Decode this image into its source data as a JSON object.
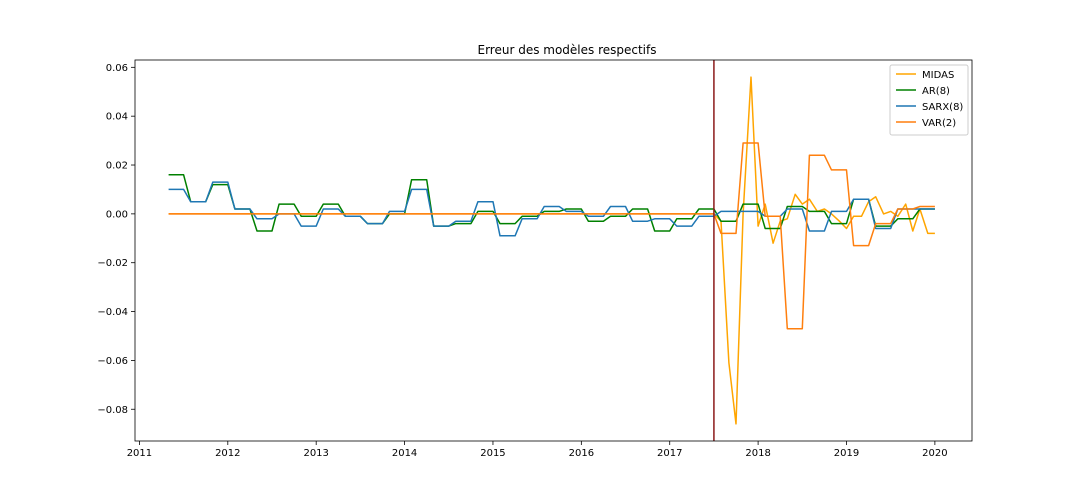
{
  "chart_data": {
    "type": "line",
    "title": "Erreur des modèles respectifs",
    "xlabel": "",
    "ylabel": "",
    "xlim": [
      2010.95,
      2020.42
    ],
    "ylim": [
      -0.093,
      0.063
    ],
    "xticks": [
      2011,
      2012,
      2013,
      2014,
      2015,
      2016,
      2017,
      2018,
      2019,
      2020
    ],
    "xtick_labels": [
      "2011",
      "2012",
      "2013",
      "2014",
      "2015",
      "2016",
      "2017",
      "2018",
      "2019",
      "2020"
    ],
    "yticks": [
      0.06,
      0.04,
      0.02,
      0.0,
      -0.02,
      -0.04,
      -0.06,
      -0.08
    ],
    "ytick_labels": [
      "0.06",
      "0.04",
      "0.02",
      "0.00",
      "−0.02",
      "−0.04",
      "−0.06",
      "−0.08"
    ],
    "grid": false,
    "legend_position": "top-right",
    "vline": {
      "x": 2017.5,
      "color": "#8b1a1a"
    },
    "series": [
      {
        "name": "MIDAS",
        "color": "#ffa500",
        "x": [
          2011.33,
          2011.5,
          2011.67,
          2011.83,
          2012.0,
          2012.17,
          2012.33,
          2012.5,
          2012.67,
          2012.83,
          2013.0,
          2013.17,
          2013.33,
          2013.5,
          2013.67,
          2013.83,
          2014.0,
          2014.17,
          2014.33,
          2014.5,
          2014.67,
          2014.83,
          2015.0,
          2015.17,
          2015.33,
          2015.5,
          2015.67,
          2015.83,
          2016.0,
          2016.17,
          2016.33,
          2016.5,
          2016.67,
          2016.83,
          2017.0,
          2017.17,
          2017.33,
          2017.5,
          2017.58,
          2017.67,
          2017.75,
          2017.83,
          2017.92,
          2018.0,
          2018.08,
          2018.17,
          2018.25,
          2018.33,
          2018.42,
          2018.5,
          2018.58,
          2018.67,
          2018.75,
          2018.83,
          2018.92,
          2019.0,
          2019.08,
          2019.17,
          2019.25,
          2019.33,
          2019.42,
          2019.5,
          2019.58,
          2019.67,
          2019.75,
          2019.83,
          2019.92,
          2020.0
        ],
        "y": [
          0.0,
          0.0,
          0.0,
          0.0,
          0.0,
          0.0,
          0.0,
          0.0,
          0.0,
          0.0,
          0.0,
          0.0,
          0.0,
          0.0,
          0.0,
          0.0,
          0.0,
          0.0,
          0.0,
          0.0,
          0.0,
          0.0,
          0.0,
          0.0,
          0.0,
          0.0,
          0.0,
          0.0,
          0.0,
          0.0,
          0.0,
          0.0,
          0.0,
          0.0,
          0.0,
          0.0,
          0.0,
          0.0,
          -0.003,
          -0.061,
          -0.086,
          0.0,
          0.056,
          -0.005,
          0.004,
          -0.012,
          -0.003,
          -0.002,
          0.008,
          0.004,
          0.006,
          0.001,
          0.002,
          0.0,
          -0.003,
          -0.006,
          -0.001,
          -0.001,
          0.005,
          0.007,
          0.0,
          0.001,
          -0.001,
          0.004,
          -0.007,
          0.002,
          -0.008,
          -0.008
        ]
      },
      {
        "name": "AR(8)",
        "color": "#008000",
        "x": [
          2011.33,
          2011.5,
          2011.58,
          2011.75,
          2011.83,
          2012.0,
          2012.08,
          2012.25,
          2012.33,
          2012.5,
          2012.58,
          2012.75,
          2012.83,
          2013.0,
          2013.08,
          2013.25,
          2013.33,
          2013.5,
          2013.58,
          2013.75,
          2013.83,
          2014.0,
          2014.08,
          2014.25,
          2014.33,
          2014.5,
          2014.58,
          2014.75,
          2014.83,
          2015.0,
          2015.08,
          2015.25,
          2015.33,
          2015.5,
          2015.58,
          2015.75,
          2015.83,
          2016.0,
          2016.08,
          2016.25,
          2016.33,
          2016.5,
          2016.58,
          2016.75,
          2016.83,
          2017.0,
          2017.08,
          2017.25,
          2017.33,
          2017.5,
          2017.58,
          2017.75,
          2017.83,
          2018.0,
          2018.08,
          2018.25,
          2018.33,
          2018.5,
          2018.58,
          2018.75,
          2018.83,
          2019.0,
          2019.08,
          2019.25,
          2019.33,
          2019.5,
          2019.58,
          2019.75,
          2019.83,
          2020.0
        ],
        "y": [
          0.016,
          0.016,
          0.005,
          0.005,
          0.012,
          0.012,
          0.002,
          0.002,
          -0.007,
          -0.007,
          0.004,
          0.004,
          -0.001,
          -0.001,
          0.004,
          0.004,
          -0.001,
          -0.001,
          -0.004,
          -0.004,
          0.0,
          0.0,
          0.014,
          0.014,
          -0.005,
          -0.005,
          -0.004,
          -0.004,
          0.001,
          0.001,
          -0.004,
          -0.004,
          -0.001,
          -0.001,
          0.001,
          0.001,
          0.002,
          0.002,
          -0.003,
          -0.003,
          -0.001,
          -0.001,
          0.002,
          0.002,
          -0.007,
          -0.007,
          -0.002,
          -0.002,
          0.002,
          0.002,
          -0.003,
          -0.003,
          0.004,
          0.004,
          -0.006,
          -0.006,
          0.003,
          0.003,
          0.001,
          0.001,
          -0.004,
          -0.004,
          0.006,
          0.006,
          -0.005,
          -0.005,
          -0.002,
          -0.002,
          0.002,
          0.002
        ]
      },
      {
        "name": "SARX(8)",
        "color": "#1f77b4",
        "x": [
          2011.33,
          2011.5,
          2011.58,
          2011.75,
          2011.83,
          2012.0,
          2012.08,
          2012.25,
          2012.33,
          2012.5,
          2012.58,
          2012.75,
          2012.83,
          2013.0,
          2013.08,
          2013.25,
          2013.33,
          2013.5,
          2013.58,
          2013.75,
          2013.83,
          2014.0,
          2014.08,
          2014.25,
          2014.33,
          2014.5,
          2014.58,
          2014.75,
          2014.83,
          2015.0,
          2015.08,
          2015.25,
          2015.33,
          2015.5,
          2015.58,
          2015.75,
          2015.83,
          2016.0,
          2016.08,
          2016.25,
          2016.33,
          2016.5,
          2016.58,
          2016.75,
          2016.83,
          2017.0,
          2017.08,
          2017.25,
          2017.33,
          2017.5,
          2017.58,
          2017.75,
          2017.83,
          2018.0,
          2018.08,
          2018.25,
          2018.33,
          2018.5,
          2018.58,
          2018.75,
          2018.83,
          2019.0,
          2019.08,
          2019.25,
          2019.33,
          2019.5,
          2019.58,
          2019.75,
          2019.83,
          2020.0
        ],
        "y": [
          0.01,
          0.01,
          0.005,
          0.005,
          0.013,
          0.013,
          0.002,
          0.002,
          -0.002,
          -0.002,
          0.0,
          0.0,
          -0.005,
          -0.005,
          0.002,
          0.002,
          -0.001,
          -0.001,
          -0.004,
          -0.004,
          0.001,
          0.001,
          0.01,
          0.01,
          -0.005,
          -0.005,
          -0.003,
          -0.003,
          0.005,
          0.005,
          -0.009,
          -0.009,
          -0.002,
          -0.002,
          0.003,
          0.003,
          0.001,
          0.001,
          -0.001,
          -0.001,
          0.003,
          0.003,
          -0.003,
          -0.003,
          -0.002,
          -0.002,
          -0.005,
          -0.005,
          -0.001,
          -0.001,
          0.001,
          0.001,
          0.001,
          0.001,
          -0.001,
          -0.001,
          0.002,
          0.002,
          -0.007,
          -0.007,
          0.001,
          0.001,
          0.006,
          0.006,
          -0.006,
          -0.006,
          0.002,
          0.002,
          0.002,
          0.002
        ]
      },
      {
        "name": "VAR(2)",
        "color": "#ff7f0e",
        "x": [
          2011.33,
          2017.5,
          2017.58,
          2017.75,
          2017.83,
          2018.0,
          2018.08,
          2018.25,
          2018.33,
          2018.5,
          2018.58,
          2018.75,
          2018.83,
          2019.0,
          2019.08,
          2019.25,
          2019.33,
          2019.5,
          2019.58,
          2019.75,
          2019.83,
          2020.0
        ],
        "y": [
          0.0,
          0.0,
          -0.008,
          -0.008,
          0.029,
          0.029,
          -0.001,
          -0.001,
          -0.047,
          -0.047,
          0.024,
          0.024,
          0.018,
          0.018,
          -0.013,
          -0.013,
          -0.004,
          -0.004,
          0.002,
          0.002,
          0.003,
          0.003
        ]
      }
    ]
  }
}
